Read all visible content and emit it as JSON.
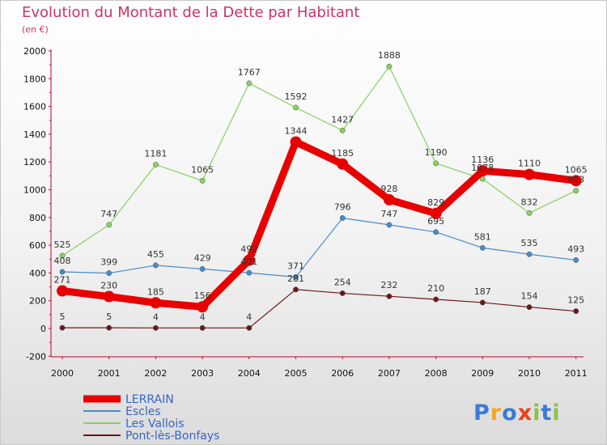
{
  "header": {
    "title": "Evolution du Montant de la Dette par Habitant",
    "subtitle": "(en €)"
  },
  "logo": {
    "letters": [
      "P",
      "r",
      "o",
      "x",
      "i",
      "t",
      "i"
    ]
  },
  "colors": {
    "LERRAIN": "#e80000",
    "Escles": "#4a8ac8",
    "Les Vallois": "#88d060",
    "Pont-lès-Bonfays": "#6a1818",
    "logo": [
      "#3a7bd5",
      "#f5a623",
      "#3a7bd5",
      "#e8401c",
      "#8bc34a",
      "#3a7bd5",
      "#8bc34a"
    ]
  },
  "chart_data": {
    "type": "line",
    "x": [
      2000,
      2001,
      2002,
      2003,
      2004,
      2005,
      2006,
      2007,
      2008,
      2009,
      2010,
      2011
    ],
    "ylim": [
      -200,
      2000
    ],
    "yticks": [
      -200,
      0,
      200,
      400,
      600,
      800,
      1000,
      1200,
      1400,
      1600,
      1800,
      2000
    ],
    "grid": false,
    "legend": "bottom-left",
    "series": [
      {
        "name": "LERRAIN",
        "values": [
          271,
          230,
          185,
          156,
          492,
          1344,
          1185,
          928,
          829,
          1136,
          1110,
          1065
        ]
      },
      {
        "name": "Escles",
        "values": [
          408,
          399,
          455,
          429,
          401,
          371,
          796,
          747,
          695,
          581,
          535,
          493
        ]
      },
      {
        "name": "Les Vallois",
        "values": [
          525,
          747,
          1181,
          1065,
          1767,
          1592,
          1427,
          1888,
          1190,
          1078,
          832,
          993
        ]
      },
      {
        "name": "Pont-lès-Bonfays",
        "values": [
          5,
          5,
          4,
          4,
          4,
          281,
          254,
          232,
          210,
          187,
          154,
          125
        ]
      }
    ]
  }
}
